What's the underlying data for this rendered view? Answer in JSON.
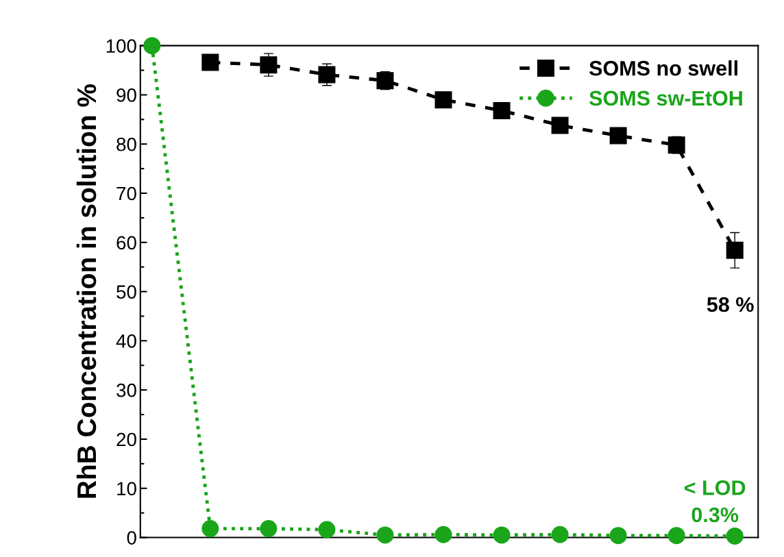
{
  "chart_data": {
    "type": "line",
    "ylabel": "RhB Concentration in solution %",
    "categories": [
      null,
      null,
      null,
      null,
      null,
      null,
      null,
      null,
      null,
      null,
      null
    ],
    "series": [
      {
        "name": "SOMS no swell",
        "color": "#000000",
        "marker": "square",
        "line_style": "dashed",
        "values": [
          null,
          96.6,
          96.1,
          94.1,
          92.9,
          89.0,
          86.8,
          83.8,
          81.7,
          79.8,
          58.4
        ],
        "errors": [
          null,
          null,
          2.3,
          2.2,
          1.8,
          1.5,
          null,
          null,
          null,
          1.7,
          3.6
        ]
      },
      {
        "name": "SOMS sw-EtOH",
        "color": "#1aa51a",
        "marker": "circle",
        "line_style": "dotted",
        "values": [
          100,
          1.8,
          1.8,
          1.6,
          0.5,
          0.6,
          0.5,
          0.6,
          0.4,
          0.4,
          0.3
        ]
      }
    ],
    "ylim": [
      0,
      100
    ],
    "yticks": [
      0,
      10,
      20,
      30,
      40,
      50,
      60,
      70,
      80,
      90,
      100
    ],
    "tick_labels": "y",
    "legend": "top right",
    "grid": false,
    "annotations": [
      "58 %",
      "< LOD\n0.3%"
    ]
  }
}
